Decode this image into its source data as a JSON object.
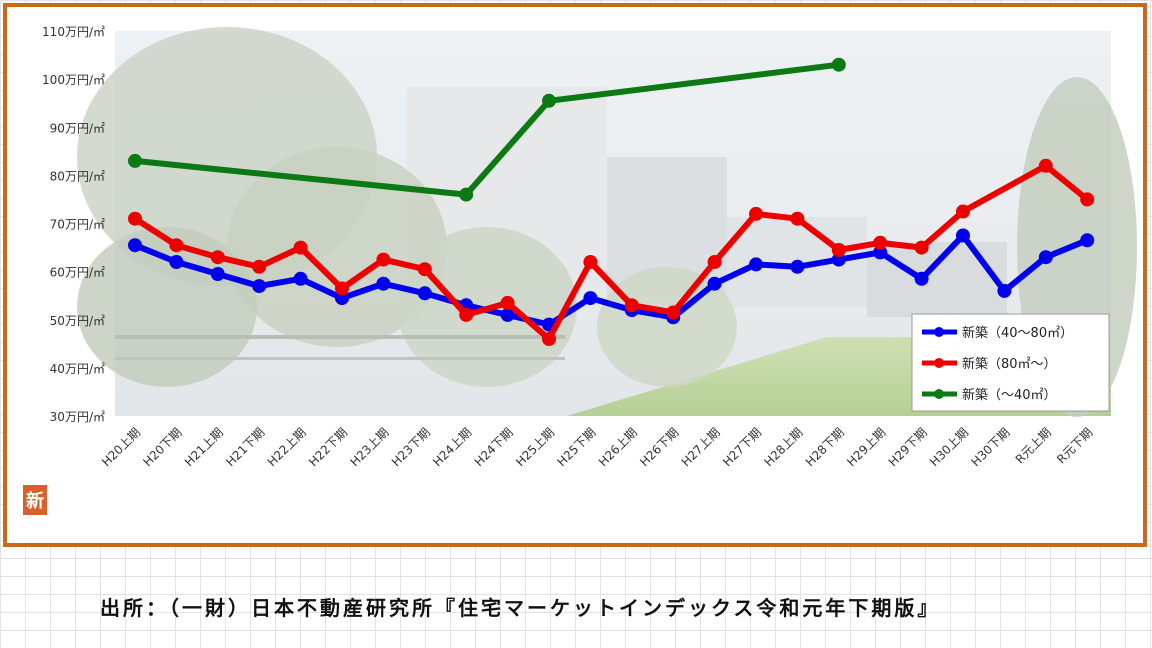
{
  "chart_data": {
    "type": "line",
    "categories": [
      "H20上期",
      "H20下期",
      "H21上期",
      "H21下期",
      "H22上期",
      "H22下期",
      "H23上期",
      "H23下期",
      "H24上期",
      "H24下期",
      "H25上期",
      "H25下期",
      "H26上期",
      "H26下期",
      "H27上期",
      "H27下期",
      "H28上期",
      "H28下期",
      "H29上期",
      "H29下期",
      "H30上期",
      "H30下期",
      "R元上期",
      "R元下期"
    ],
    "yticks": [
      "30万円/㎡",
      "40万円/㎡",
      "50万円/㎡",
      "60万円/㎡",
      "70万円/㎡",
      "80万円/㎡",
      "90万円/㎡",
      "100万円/㎡",
      "110万円/㎡"
    ],
    "ylim": [
      30,
      110
    ],
    "grid": false,
    "legend_position": "bottom-right",
    "series": [
      {
        "name": "新築（40～80㎡）",
        "color": "#0000ee",
        "values": [
          65.5,
          62,
          59.5,
          57,
          58.5,
          54.5,
          57.5,
          55.5,
          53,
          51,
          49,
          54.5,
          52,
          50.5,
          57.5,
          61.5,
          61,
          62.5,
          64,
          58.5,
          67.5,
          56,
          63,
          66.5
        ]
      },
      {
        "name": "新築（80㎡～）",
        "color": "#ee0000",
        "values": [
          71,
          65.5,
          63,
          61,
          65,
          56.5,
          62.5,
          60.5,
          51,
          53.5,
          46,
          62,
          53,
          51.5,
          62,
          72,
          71,
          64.5,
          66,
          65,
          72.5,
          null,
          82,
          75
        ]
      },
      {
        "name": "新築（～40㎡）",
        "color": "#0b7a14",
        "values": [
          83,
          null,
          null,
          null,
          null,
          null,
          null,
          null,
          76,
          null,
          95.5,
          null,
          null,
          null,
          null,
          null,
          null,
          103,
          null,
          null,
          null,
          null,
          null,
          null
        ]
      }
    ]
  },
  "logo_text": "新",
  "source_text": "出所：（一財）日本不動産研究所『住宅マーケットインデックス令和元年下期版』"
}
